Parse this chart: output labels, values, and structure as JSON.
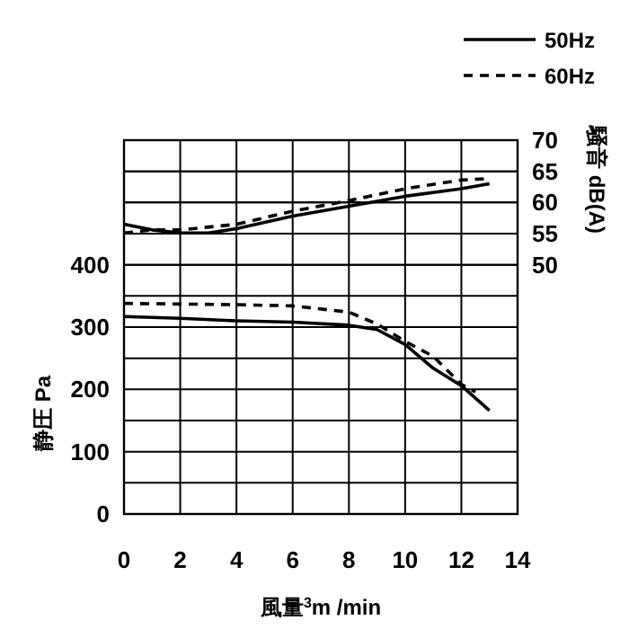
{
  "chart_data": {
    "type": "line",
    "xlabel": "風量$^{3}$m /min",
    "ylabel": "静圧 Pa",
    "y2label": "騒音 dB(A)",
    "xlim": [
      0,
      14
    ],
    "xticks": [
      0,
      2,
      4,
      6,
      8,
      10,
      12,
      14
    ],
    "ylim": [
      0,
      600
    ],
    "yticks": [
      0,
      {
        "value": 50,
        "label": null
      },
      100,
      {
        "value": 150,
        "label": null
      },
      200,
      {
        "value": 250,
        "label": null
      },
      300,
      {
        "value": 350,
        "label": null
      },
      400,
      {
        "value": 450,
        "label": null
      },
      {
        "value": 500,
        "label": null
      },
      {
        "value": 550,
        "label": null
      },
      {
        "value": 600,
        "label": null
      }
    ],
    "y2lim": [
      10,
      70
    ],
    "y2ticks": [
      50,
      55,
      60,
      65,
      70
    ],
    "grid": true,
    "legend": "top right",
    "marker": "none",
    "series": [
      {
        "name": "50Hz",
        "color": "#000000",
        "line_style": "solid",
        "x": [
          0,
          2,
          4,
          6,
          8,
          9,
          10,
          11,
          12,
          13
        ],
        "values": [
          317,
          314,
          310,
          308,
          303,
          296,
          272,
          234,
          206,
          166
        ]
      },
      {
        "name": "60Hz",
        "color": "#000000",
        "line_style": "dashed",
        "x": [
          0,
          2,
          4,
          6,
          8,
          9,
          10,
          11,
          12,
          12.5
        ],
        "values": [
          338,
          337,
          336,
          334,
          324,
          305,
          277,
          253,
          208,
          196
        ]
      },
      {
        "color": "#000000",
        "line_style": "solid",
        "axis": "y2",
        "x": [
          0,
          1,
          2,
          3,
          4,
          6,
          8,
          10,
          12,
          13
        ],
        "values": [
          56.5,
          55.6,
          55.1,
          55.1,
          55.8,
          57.8,
          59.4,
          61,
          62.2,
          63
        ]
      },
      {
        "color": "#000000",
        "line_style": "dashed",
        "axis": "y2",
        "x": [
          0,
          1,
          2,
          4,
          6,
          8,
          10,
          12,
          12.8
        ],
        "values": [
          55.1,
          55.6,
          55.6,
          56.5,
          58.6,
          60.3,
          62.2,
          63.6,
          63.8
        ]
      }
    ]
  }
}
